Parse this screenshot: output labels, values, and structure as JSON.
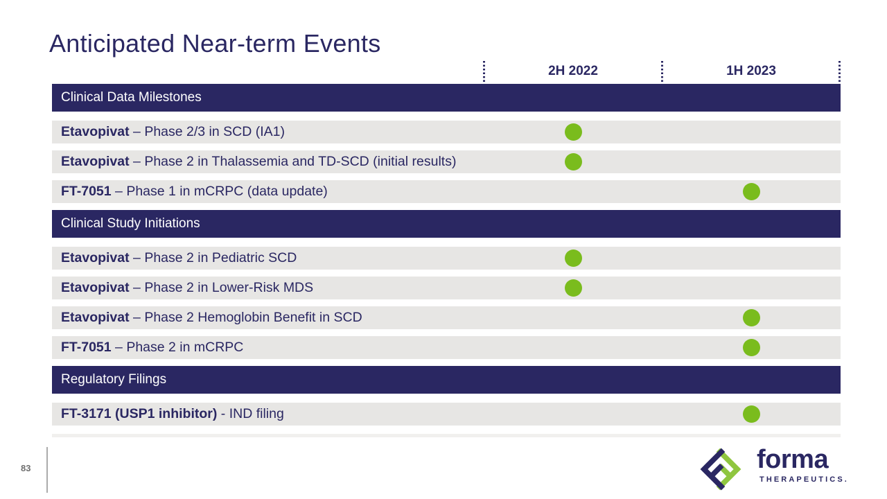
{
  "slide": {
    "title": "Anticipated Near-term Events",
    "page_number": "83",
    "colors": {
      "navy": "#2a2762",
      "green": "#7abc1d",
      "logo_green": "#8fc63f",
      "row_gray": "#e7e6e4"
    },
    "timeline": {
      "columns": [
        {
          "id": "2H2022",
          "label": "2H 2022"
        },
        {
          "id": "1H2023",
          "label": "1H 2023"
        }
      ]
    },
    "sections": [
      {
        "header": "Clinical Data Milestones",
        "rows": [
          {
            "name": "Etavopivat",
            "sep": " – ",
            "desc": "Phase 2/3 in SCD (IA1)",
            "col": "2H2022"
          },
          {
            "name": "Etavopivat",
            "sep": " – ",
            "desc": "Phase 2 in Thalassemia and TD-SCD (initial results)",
            "col": "2H2022"
          },
          {
            "name": "FT-7051",
            "sep": " – ",
            "desc": "Phase 1 in mCRPC (data update)",
            "col": "1H2023"
          }
        ]
      },
      {
        "header": "Clinical Study Initiations",
        "rows": [
          {
            "name": "Etavopivat",
            "sep": " – ",
            "desc": "Phase 2 in Pediatric SCD",
            "col": "2H2022"
          },
          {
            "name": "Etavopivat",
            "sep": " – ",
            "desc": "Phase 2 in Lower-Risk MDS",
            "col": "2H2022"
          },
          {
            "name": "Etavopivat",
            "sep": " – ",
            "desc": "Phase 2 Hemoglobin Benefit in SCD",
            "col": "1H2023"
          },
          {
            "name": "FT-7051",
            "sep": " – ",
            "desc": "Phase 2 in mCRPC",
            "col": "1H2023"
          }
        ]
      },
      {
        "header": "Regulatory Filings",
        "rows": [
          {
            "name": "FT-3171 (USP1 inhibitor)",
            "sep": " - ",
            "desc": "IND filing",
            "col": "1H2023"
          }
        ]
      }
    ],
    "logo": {
      "icon": "forma-diamond-icon",
      "word": "forma",
      "sub": "THERAPEUTICS."
    }
  }
}
